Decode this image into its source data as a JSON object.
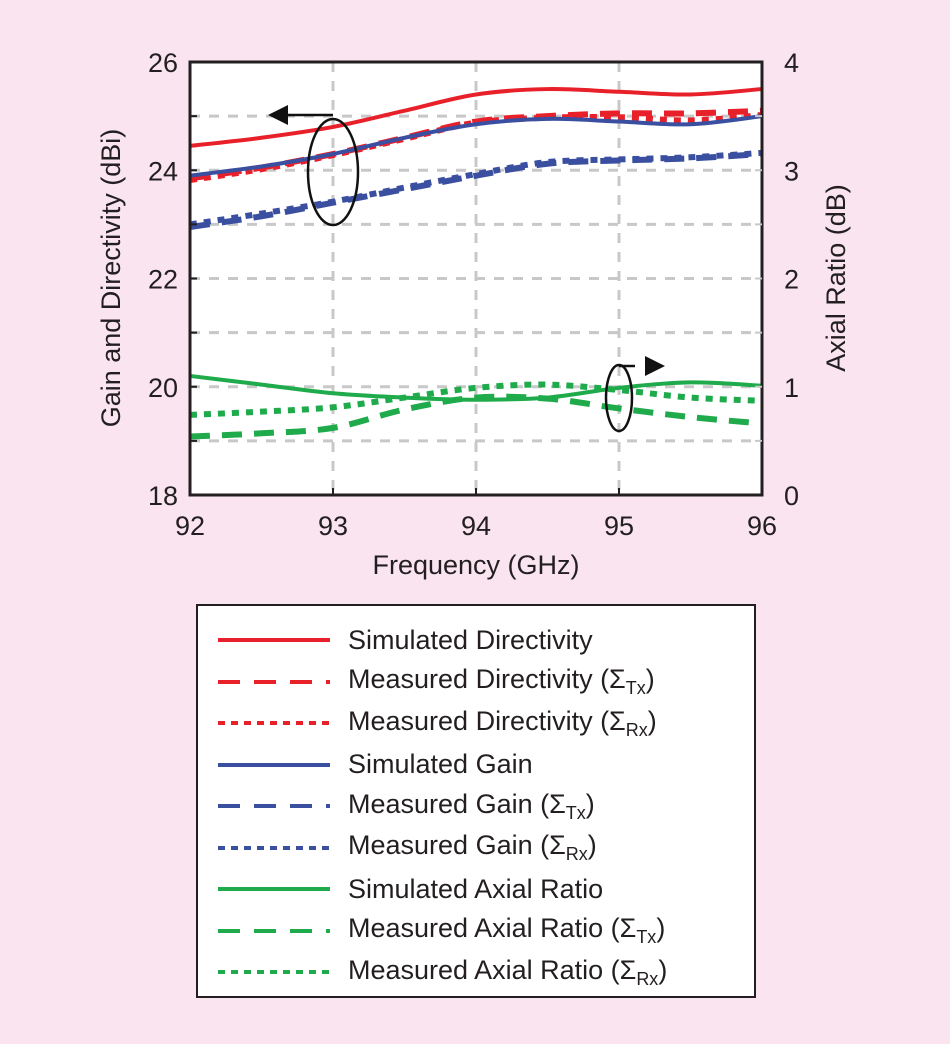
{
  "chart_data": {
    "type": "line",
    "xlabel": "Frequency (GHz)",
    "ylabel": "Gain and Directivity (dBi)",
    "y2label": "Axial Ratio (dB)",
    "xlim": [
      92,
      96
    ],
    "ylim": [
      18,
      26
    ],
    "y2lim": [
      0,
      4
    ],
    "xticks": [
      "92",
      "93",
      "94",
      "95",
      "96"
    ],
    "yticks": [
      "18",
      "20",
      "22",
      "24",
      "26"
    ],
    "y2ticks": [
      "0",
      "1",
      "2",
      "3",
      "4"
    ],
    "grid": true,
    "x": [
      92,
      92.5,
      93,
      93.5,
      94,
      94.5,
      95,
      95.5,
      96
    ],
    "series": [
      {
        "name": "Simulated Directivity",
        "axis": "left",
        "color": "#e8202a",
        "style": "solid",
        "values": [
          24.45,
          24.6,
          24.8,
          25.1,
          25.4,
          25.5,
          25.45,
          25.4,
          25.5
        ]
      },
      {
        "name": "Measured Directivity (ΣTx)",
        "axis": "left",
        "color": "#e8202a",
        "style": "dashed",
        "values": [
          23.85,
          24.05,
          24.3,
          24.6,
          24.9,
          25.0,
          25.05,
          25.05,
          25.1
        ]
      },
      {
        "name": "Measured Directivity (ΣRx)",
        "axis": "left",
        "color": "#e8202a",
        "style": "dotted",
        "values": [
          23.82,
          24.02,
          24.28,
          24.58,
          24.88,
          24.97,
          24.98,
          24.92,
          25.02
        ]
      },
      {
        "name": "Simulated Gain",
        "axis": "left",
        "color": "#3a4fa0",
        "style": "solid",
        "values": [
          23.9,
          24.07,
          24.3,
          24.6,
          24.85,
          24.95,
          24.9,
          24.85,
          25.0
        ]
      },
      {
        "name": "Measured Gain (ΣTx)",
        "axis": "left",
        "color": "#3a4fa0",
        "style": "dashed",
        "values": [
          22.95,
          23.15,
          23.4,
          23.65,
          23.9,
          24.12,
          24.18,
          24.22,
          24.3
        ]
      },
      {
        "name": "Measured Gain (ΣRx)",
        "axis": "left",
        "color": "#3a4fa0",
        "style": "dotted",
        "values": [
          23.0,
          23.2,
          23.42,
          23.68,
          23.93,
          24.15,
          24.2,
          24.24,
          24.32
        ]
      },
      {
        "name": "Simulated Axial Ratio",
        "axis": "right",
        "color": "#1fab4b",
        "style": "solid",
        "values": [
          1.1,
          1.02,
          0.94,
          0.9,
          0.88,
          0.9,
          0.99,
          1.04,
          1.01
        ]
      },
      {
        "name": "Measured Axial Ratio (ΣTx)",
        "axis": "right",
        "color": "#1fab4b",
        "style": "dashed",
        "values": [
          0.54,
          0.57,
          0.62,
          0.79,
          0.9,
          0.89,
          0.8,
          0.72,
          0.66
        ]
      },
      {
        "name": "Measured Axial Ratio (ΣRx)",
        "axis": "right",
        "color": "#1fab4b",
        "style": "dotted",
        "values": [
          0.74,
          0.77,
          0.81,
          0.9,
          0.99,
          1.02,
          0.97,
          0.9,
          0.87
        ]
      }
    ],
    "annotations": [
      {
        "text": "left-arrow ellipse",
        "target": "Gain and Directivity curves",
        "points_to": "left axis",
        "x": 93.0
      },
      {
        "text": "right-arrow ellipse",
        "target": "Axial Ratio curves",
        "points_to": "right axis",
        "x": 95.0
      }
    ],
    "legend": {
      "position": "below",
      "entries": [
        {
          "main": "Simulated Directivity",
          "sub": "",
          "close": ""
        },
        {
          "main": "Measured Directivity (Σ",
          "sub": "Tx",
          "close": ")"
        },
        {
          "main": "Measured Directivity (Σ",
          "sub": "Rx",
          "close": ")"
        },
        {
          "main": "Simulated Gain",
          "sub": "",
          "close": ""
        },
        {
          "main": "Measured Gain (Σ",
          "sub": "Tx",
          "close": ")"
        },
        {
          "main": "Measured Gain (Σ",
          "sub": "Rx",
          "close": ")"
        },
        {
          "main": "Simulated Axial Ratio",
          "sub": "",
          "close": ""
        },
        {
          "main": "Measured Axial Ratio (Σ",
          "sub": "Tx",
          "close": ")"
        },
        {
          "main": "Measured Axial Ratio (Σ",
          "sub": "Rx",
          "close": ")"
        }
      ]
    }
  }
}
